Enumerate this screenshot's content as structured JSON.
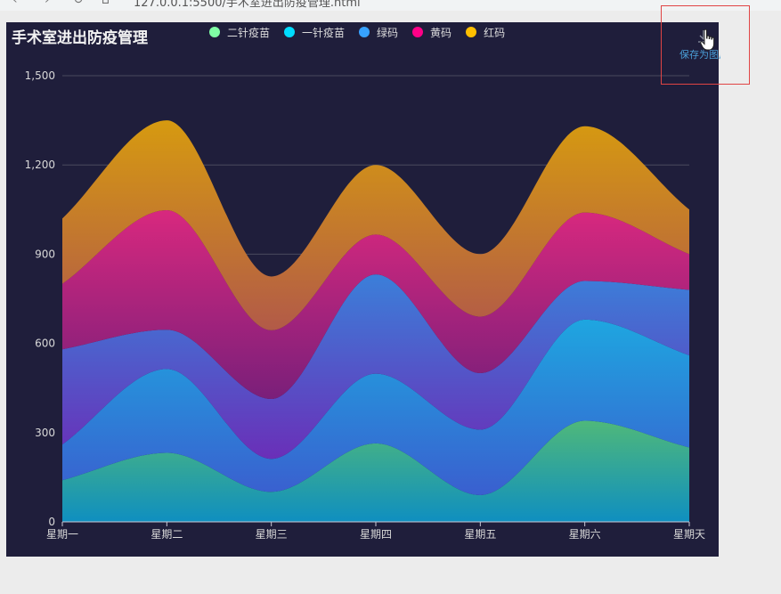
{
  "browser": {
    "address_text": "127.0.0.1:5500/手术室进出防疫管理.html"
  },
  "toolbox": {
    "save_label": "保存为图片",
    "save_icon": "download-icon"
  },
  "chart_data": {
    "type": "area",
    "stacked": true,
    "smooth": true,
    "title": "手术室进出防疫管理",
    "categories": [
      "星期一",
      "星期二",
      "星期三",
      "星期四",
      "星期五",
      "星期六",
      "星期天"
    ],
    "ylim": [
      0,
      1500
    ],
    "yticks": [
      0,
      300,
      600,
      900,
      1200,
      1500
    ],
    "grid": true,
    "legend_position": "top-center",
    "series": [
      {
        "name": "二针疫苗",
        "values": [
          140,
          232,
          101,
          264,
          90,
          340,
          250
        ],
        "color": "#80FFA5",
        "gradient": [
          "#4fb87a",
          "#0f8fc0"
        ]
      },
      {
        "name": "一针疫苗",
        "values": [
          120,
          282,
          111,
          234,
          220,
          340,
          310
        ],
        "color": "#00DDFF",
        "gradient": [
          "#1ea6e0",
          "#3a5fcf"
        ]
      },
      {
        "name": "绿码",
        "values": [
          320,
          132,
          201,
          334,
          190,
          130,
          220
        ],
        "color": "#37A2FF",
        "gradient": [
          "#3b7fd9",
          "#6a2fb8"
        ]
      },
      {
        "name": "黄码",
        "values": [
          220,
          402,
          231,
          134,
          190,
          230,
          120
        ],
        "color": "#FF0087",
        "gradient": [
          "#d8287e",
          "#7a1f7a"
        ]
      },
      {
        "name": "红码",
        "values": [
          220,
          302,
          181,
          234,
          210,
          290,
          150
        ],
        "color": "#FFBF00",
        "gradient": [
          "#d69a10",
          "#b25a48"
        ]
      }
    ]
  }
}
